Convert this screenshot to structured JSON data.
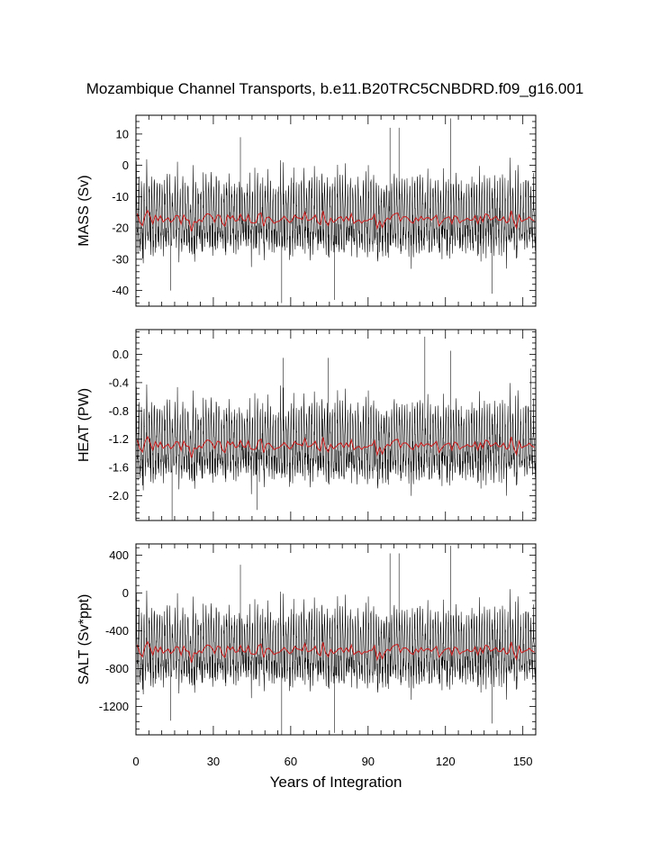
{
  "title": "Mozambique Channel Transports, b.e11.B20TRC5CNBDRD.f09_g16.001",
  "xlabel": "Years of Integration",
  "colors": {
    "raw": "#000000",
    "smooth": "#cc2222"
  },
  "chart_data": {
    "type": "line",
    "x_range": [
      0,
      155
    ],
    "x_ticks": [
      0,
      30,
      60,
      90,
      120,
      150
    ],
    "x_tick_labels": [
      "0",
      "30",
      "60",
      "90",
      "120",
      "150"
    ],
    "panels": [
      {
        "ylabel": "MASS (Sv)",
        "ylim": [
          -45,
          16
        ],
        "ticks": [
          10,
          0,
          -10,
          -20,
          -30,
          -40
        ],
        "tick_labels": [
          "10",
          "0",
          "-10",
          "-20",
          "-30",
          "-40"
        ],
        "mean": -17,
        "amp": 10,
        "series": [
          {
            "kind": "monthly",
            "color": "#000000",
            "note_points": [
              [
                40.5,
                9
              ],
              [
                98.5,
                12
              ],
              [
                102,
                12
              ],
              [
                122,
                15
              ],
              [
                56.5,
                -44
              ],
              [
                13.5,
                -40
              ],
              [
                138,
                -41
              ],
              [
                77,
                -43
              ]
            ]
          },
          {
            "kind": "annual-mean",
            "color": "#cc2222"
          }
        ]
      },
      {
        "ylabel": "HEAT (PW)",
        "ylim": [
          -2.35,
          0.35
        ],
        "ticks": [
          0.0,
          -0.4,
          -0.8,
          -1.2,
          -1.6,
          -2.0
        ],
        "tick_labels": [
          "0.0",
          "-0.4",
          "-0.8",
          "-1.2",
          "-1.6",
          "-2.0"
        ],
        "mean": -1.28,
        "amp": 0.45,
        "series": [
          {
            "kind": "monthly",
            "color": "#000000",
            "note_points": [
              [
                57,
                -0.05
              ],
              [
                74.5,
                -0.05
              ],
              [
                112,
                0.25
              ],
              [
                122,
                0.05
              ],
              [
                14,
                -2.35
              ],
              [
                47,
                -2.2
              ],
              [
                153,
                -0.2
              ]
            ]
          },
          {
            "kind": "annual-mean",
            "color": "#cc2222"
          }
        ]
      },
      {
        "ylabel": "SALT (Sv*ppt)",
        "ylim": [
          -1500,
          520
        ],
        "ticks": [
          400,
          0,
          -400,
          -800,
          -1200
        ],
        "tick_labels": [
          "400",
          "0",
          "-400",
          "-800",
          "-1200"
        ],
        "mean": -600,
        "amp": 330,
        "series": [
          {
            "kind": "monthly",
            "color": "#000000",
            "note_points": [
              [
                40.5,
                300
              ],
              [
                98.5,
                420
              ],
              [
                102,
                420
              ],
              [
                122,
                500
              ],
              [
                56.5,
                -1500
              ],
              [
                13.5,
                -1350
              ],
              [
                138,
                -1380
              ],
              [
                77,
                -1480
              ]
            ]
          },
          {
            "kind": "annual-mean",
            "color": "#cc2222"
          }
        ]
      }
    ]
  }
}
